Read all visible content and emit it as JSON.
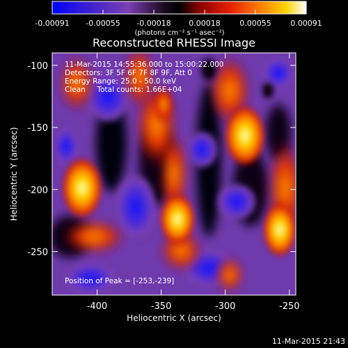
{
  "colorbar": {
    "tick_labels": [
      "-0.00091",
      "-0.00055",
      "-0.00018",
      "0.00018",
      "0.00055",
      "0.00091"
    ],
    "unit_label": "(photons cm⁻² s⁻¹ asec⁻²)",
    "colors": [
      "#0000ff",
      "#3a1fd2",
      "#7b3fb1",
      "#000000",
      "#8b0000",
      "#e52000",
      "#ff7f00",
      "#ffd400",
      "#ffffff"
    ]
  },
  "image": {
    "title": "Reconstructed RHESSI Image",
    "info_lines": [
      "11-Mar-2015 14:55:36.000 to 15:00:22.000",
      "Detectors: 3F 5F 6F 7F 8F 9F, Att 0",
      "Energy Range: 25.0 - 50.0 keV",
      "Clean     Total counts: 1.66E+04"
    ],
    "peak_label": "Position of Peak = [-253,-239]",
    "x_axis_label": "Heliocentric X (arcsec)",
    "y_axis_label": "Heliocentric Y (arcsec)",
    "x_ticks": [
      "-400",
      "-350",
      "-300",
      "-250"
    ],
    "y_ticks": [
      "-100",
      "-150",
      "-200",
      "-250"
    ],
    "x_tick_values": [
      -400,
      -350,
      -300,
      -250
    ],
    "y_tick_values": [
      -100,
      -150,
      -200,
      -250
    ],
    "x_range": [
      -435,
      -245
    ],
    "y_range": [
      -285,
      -90
    ]
  },
  "footer": {
    "timestamp": "11-Mar-2015 21:43"
  }
}
